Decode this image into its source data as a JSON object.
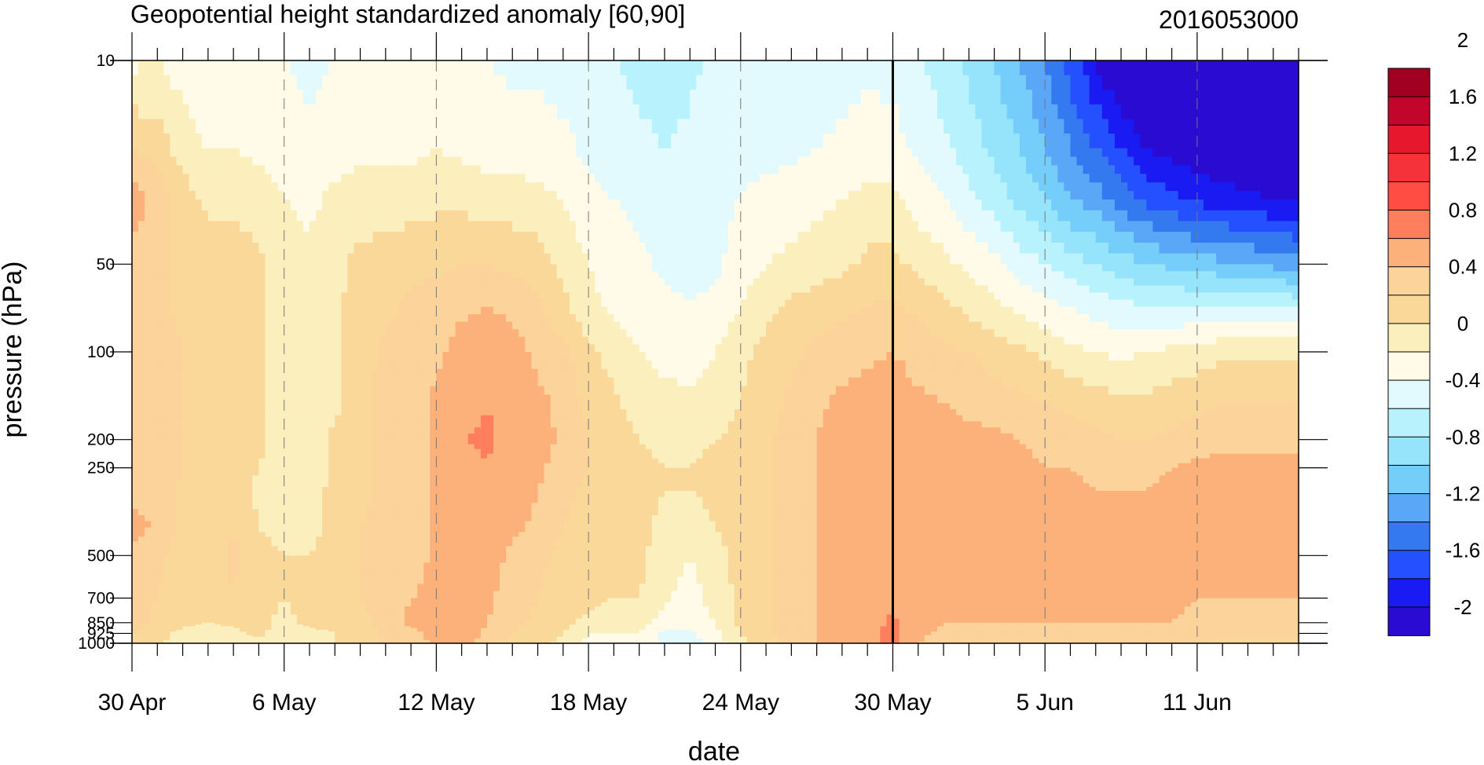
{
  "chart_data": {
    "type": "heatmap",
    "title": "Geopotential height standardized anomaly [60,90]",
    "right_title": "2016053000",
    "xlabel": "date",
    "ylabel": "pressure (hPa)",
    "x_ticks": [
      "30 Apr",
      "6 May",
      "12 May",
      "18 May",
      "24 May",
      "30 May",
      "5 Jun",
      "11 Jun"
    ],
    "x_range": [
      "30 Apr",
      "15 Jun"
    ],
    "y_ticks": [
      10,
      50,
      100,
      200,
      250,
      500,
      700,
      850,
      925,
      1000
    ],
    "y_tick_labels": [
      "10",
      "50",
      "100",
      "200",
      "250",
      "500",
      "700",
      "850",
      "925",
      "1000"
    ],
    "y_scale": "log",
    "y_range": [
      1000,
      10
    ],
    "forecast_start": "30 May",
    "colorbar": {
      "levels": [
        -2.2,
        -2.0,
        -1.8,
        -1.6,
        -1.4,
        -1.2,
        -1.0,
        -0.8,
        -0.6,
        -0.4,
        -0.2,
        0,
        0.2,
        0.4,
        0.6,
        0.8,
        1.0,
        1.2,
        1.4,
        1.6,
        1.8,
        2.0,
        2.2
      ],
      "labels": [
        "2",
        "1.6",
        "1.2",
        "0.8",
        "0.4",
        "0",
        "-0.4",
        "-0.8",
        "-1.2",
        "-1.6",
        "-2"
      ],
      "colors": [
        "#2a0bd1",
        "#1a1af2",
        "#2450ff",
        "#3579f0",
        "#5aa6f7",
        "#75cdfa",
        "#95e4fb",
        "#b8f2fc",
        "#e2fafd",
        "#fffbe8",
        "#fcefbe",
        "#fad89a",
        "#fcd39a",
        "#fcb07a",
        "#ff7e5d",
        "#ff4d44",
        "#f53139",
        "#e6182d",
        "#c2052b",
        "#a10021"
      ]
    },
    "fields": {
      "dates": [
        "30 Apr",
        "1 May",
        "2 May",
        "3 May",
        "4 May",
        "5 May",
        "6 May",
        "7 May",
        "8 May",
        "9 May",
        "10 May",
        "11 May",
        "12 May",
        "13 May",
        "14 May",
        "15 May",
        "16 May",
        "17 May",
        "18 May",
        "19 May",
        "20 May",
        "21 May",
        "22 May",
        "23 May",
        "24 May",
        "25 May",
        "26 May",
        "27 May",
        "28 May",
        "29 May",
        "30 May",
        "31 May",
        "1 Jun",
        "2 Jun",
        "3 Jun",
        "4 Jun",
        "5 Jun",
        "6 Jun",
        "7 Jun",
        "8 Jun",
        "9 Jun",
        "10 Jun",
        "11 Jun",
        "12 Jun",
        "13 Jun",
        "14 Jun",
        "15 Jun"
      ],
      "levels_hpa": [
        10,
        20,
        30,
        50,
        70,
        100,
        150,
        200,
        250,
        300,
        400,
        500,
        700,
        850,
        925,
        1000
      ],
      "values": [
        [
          -0.25,
          0.2,
          0.5,
          0.3,
          0.3,
          0.35,
          0.35,
          0.35,
          0.35,
          0.3,
          0.5,
          0.3,
          0.3,
          0.4,
          0.2,
          0.1
        ],
        [
          -0.2,
          0.1,
          0.35,
          0.25,
          0.25,
          0.3,
          0.35,
          0.4,
          0.4,
          0.35,
          0.35,
          0.25,
          0.2,
          0.1,
          0.05,
          0.05
        ],
        [
          -0.3,
          -0.1,
          0.1,
          0.15,
          0.15,
          0.2,
          0.2,
          0.2,
          0.2,
          0.15,
          0.15,
          0.1,
          0.1,
          0.05,
          -0.05,
          -0.1
        ],
        [
          -0.35,
          -0.2,
          -0.05,
          0.1,
          0.1,
          0.1,
          0.1,
          0.1,
          0.1,
          0.1,
          0.1,
          0.1,
          0.1,
          0,
          -0.15,
          -0.2
        ],
        [
          -0.3,
          -0.2,
          -0.05,
          0.1,
          0.1,
          0.1,
          0.1,
          0.1,
          0.1,
          0.2,
          0.2,
          0.25,
          0.2,
          0.05,
          -0.05,
          -0.1
        ],
        [
          -0.35,
          -0.25,
          -0.1,
          0.05,
          0.05,
          0.05,
          0.05,
          0.05,
          0,
          -0.05,
          0,
          0.05,
          0.05,
          0.05,
          0.05,
          -0.05
        ],
        [
          -0.4,
          -0.3,
          -0.2,
          -0.1,
          -0.1,
          -0.1,
          -0.1,
          -0.1,
          -0.1,
          -0.1,
          -0.05,
          0,
          0,
          -0.05,
          -0.1,
          -0.1
        ],
        [
          -0.45,
          -0.35,
          -0.25,
          -0.15,
          -0.15,
          -0.15,
          -0.15,
          -0.15,
          -0.15,
          -0.15,
          -0.1,
          0,
          0.05,
          0.05,
          -0.05,
          -0.1
        ],
        [
          -0.4,
          -0.3,
          -0.15,
          -0.05,
          -0.05,
          -0.05,
          -0.05,
          0.05,
          0.05,
          0.1,
          0.1,
          0.1,
          0.1,
          0.05,
          0,
          0
        ],
        [
          -0.35,
          -0.25,
          -0.1,
          0.05,
          0.1,
          0.1,
          0.15,
          0.15,
          0.15,
          0.15,
          0.2,
          0.2,
          0.2,
          0.1,
          0.05,
          0.05
        ],
        [
          -0.35,
          -0.25,
          -0.1,
          0.1,
          0.15,
          0.25,
          0.25,
          0.25,
          0.25,
          0.25,
          0.25,
          0.3,
          0.3,
          0.3,
          0.25,
          0.25
        ],
        [
          -0.35,
          -0.25,
          -0.1,
          0.15,
          0.25,
          0.3,
          0.3,
          0.3,
          0.3,
          0.3,
          0.3,
          0.3,
          0.4,
          0.45,
          0.35,
          0.3
        ],
        [
          -0.35,
          -0.2,
          -0.05,
          0.15,
          0.3,
          0.35,
          0.45,
          0.45,
          0.45,
          0.45,
          0.45,
          0.45,
          0.45,
          0.45,
          0.45,
          0.45
        ],
        [
          -0.35,
          -0.25,
          -0.05,
          0.2,
          0.35,
          0.5,
          0.55,
          0.6,
          0.55,
          0.55,
          0.55,
          0.55,
          0.55,
          0.55,
          0.55,
          0.5
        ],
        [
          -0.4,
          -0.3,
          -0.1,
          0.2,
          0.4,
          0.6,
          0.6,
          0.62,
          0.6,
          0.55,
          0.55,
          0.5,
          0.45,
          0.4,
          0.35,
          0.3
        ],
        [
          -0.45,
          -0.3,
          -0.1,
          0.15,
          0.35,
          0.5,
          0.55,
          0.55,
          0.5,
          0.5,
          0.45,
          0.35,
          0.3,
          0.25,
          0.2,
          0.15
        ],
        [
          -0.45,
          -0.3,
          -0.15,
          0.1,
          0.25,
          0.35,
          0.45,
          0.5,
          0.45,
          0.4,
          0.35,
          0.25,
          0.2,
          0.15,
          0.1,
          0.05
        ],
        [
          -0.5,
          -0.35,
          -0.2,
          -0.05,
          0.05,
          0.25,
          0.35,
          0.35,
          0.3,
          0.25,
          0.2,
          0.15,
          0.1,
          0.05,
          0,
          -0.05
        ],
        [
          -0.55,
          -0.45,
          -0.35,
          -0.2,
          -0.15,
          0.05,
          0.15,
          0.2,
          0.2,
          0.15,
          0.1,
          0.1,
          0.05,
          -0.05,
          -0.2,
          -0.25
        ],
        [
          -0.6,
          -0.5,
          -0.4,
          -0.3,
          -0.25,
          -0.1,
          0.05,
          0.1,
          0.1,
          0.1,
          0.1,
          0.05,
          0,
          -0.1,
          -0.2,
          -0.25
        ],
        [
          -0.65,
          -0.55,
          -0.45,
          -0.35,
          -0.3,
          -0.2,
          -0.1,
          0,
          0.05,
          0.05,
          0.05,
          0.05,
          0,
          -0.1,
          -0.2,
          -0.3
        ],
        [
          -0.75,
          -0.6,
          -0.5,
          -0.45,
          -0.35,
          -0.25,
          -0.15,
          -0.05,
          0,
          0,
          -0.05,
          -0.1,
          -0.15,
          -0.3,
          -0.45,
          -0.45
        ],
        [
          -0.65,
          -0.55,
          -0.5,
          -0.45,
          -0.4,
          -0.3,
          -0.15,
          -0.05,
          0,
          0,
          -0.1,
          -0.2,
          -0.3,
          -0.3,
          -0.45,
          -0.5
        ],
        [
          -0.55,
          -0.5,
          -0.45,
          -0.45,
          -0.35,
          -0.2,
          -0.1,
          0,
          0.05,
          0.05,
          0,
          -0.05,
          -0.1,
          -0.2,
          -0.25,
          -0.3
        ],
        [
          -0.5,
          -0.45,
          -0.4,
          -0.3,
          -0.2,
          -0.05,
          0,
          0.05,
          0.1,
          0.1,
          0.05,
          0.05,
          0.05,
          0.05,
          0,
          -0.05
        ],
        [
          -0.55,
          -0.45,
          -0.35,
          -0.2,
          -0.05,
          0.05,
          0.1,
          0.15,
          0.15,
          0.15,
          0.15,
          0.15,
          0.15,
          0.15,
          0.15,
          0.1
        ],
        [
          -0.55,
          -0.45,
          -0.3,
          -0.15,
          0.05,
          0.15,
          0.25,
          0.3,
          0.3,
          0.3,
          0.3,
          0.3,
          0.3,
          0.3,
          0.3,
          0.3
        ],
        [
          -0.5,
          -0.4,
          -0.25,
          -0.1,
          0.1,
          0.25,
          0.35,
          0.4,
          0.4,
          0.4,
          0.4,
          0.4,
          0.4,
          0.4,
          0.4,
          0.4
        ],
        [
          -0.5,
          -0.35,
          -0.2,
          -0.05,
          0.15,
          0.3,
          0.45,
          0.5,
          0.5,
          0.5,
          0.5,
          0.5,
          0.5,
          0.45,
          0.45,
          0.45
        ],
        [
          -0.45,
          -0.3,
          -0.15,
          0.05,
          0.2,
          0.35,
          0.5,
          0.6,
          0.58,
          0.55,
          0.55,
          0.55,
          0.55,
          0.55,
          0.55,
          0.55
        ],
        [
          -0.5,
          -0.3,
          -0.15,
          0.05,
          0.25,
          0.4,
          0.55,
          0.58,
          0.55,
          0.55,
          0.55,
          0.55,
          0.58,
          0.62,
          0.65,
          0.65
        ],
        [
          -0.6,
          -0.45,
          -0.3,
          -0.05,
          0.15,
          0.3,
          0.45,
          0.5,
          0.5,
          0.5,
          0.5,
          0.5,
          0.5,
          0.5,
          0.45,
          0.4
        ],
        [
          -0.7,
          -0.55,
          -0.4,
          -0.15,
          0.05,
          0.25,
          0.4,
          0.5,
          0.5,
          0.5,
          0.5,
          0.45,
          0.45,
          0.4,
          0.35,
          0.3
        ],
        [
          -0.85,
          -0.7,
          -0.55,
          -0.25,
          -0.05,
          0.2,
          0.35,
          0.45,
          0.45,
          0.45,
          0.45,
          0.45,
          0.45,
          0.4,
          0.35,
          0.3
        ],
        [
          -1.0,
          -0.85,
          -0.7,
          -0.35,
          -0.15,
          0.1,
          0.3,
          0.45,
          0.45,
          0.45,
          0.45,
          0.45,
          0.45,
          0.4,
          0.35,
          0.3
        ],
        [
          -1.2,
          -1.0,
          -0.85,
          -0.5,
          -0.25,
          0.05,
          0.25,
          0.4,
          0.45,
          0.45,
          0.45,
          0.45,
          0.45,
          0.4,
          0.35,
          0.3
        ],
        [
          -1.4,
          -1.2,
          -1.0,
          -0.6,
          -0.35,
          -0.05,
          0.2,
          0.35,
          0.4,
          0.45,
          0.45,
          0.45,
          0.45,
          0.4,
          0.35,
          0.25
        ],
        [
          -1.7,
          -1.4,
          -1.2,
          -0.7,
          -0.4,
          -0.15,
          0.15,
          0.3,
          0.4,
          0.45,
          0.45,
          0.45,
          0.45,
          0.4,
          0.3,
          0.2
        ],
        [
          -2.0,
          -1.6,
          -1.3,
          -0.8,
          -0.5,
          -0.2,
          0.1,
          0.25,
          0.35,
          0.4,
          0.45,
          0.45,
          0.45,
          0.4,
          0.3,
          0.2
        ],
        [
          -2.3,
          -1.8,
          -1.5,
          -0.9,
          -0.55,
          -0.25,
          0.05,
          0.2,
          0.35,
          0.4,
          0.4,
          0.45,
          0.45,
          0.4,
          0.3,
          0.2
        ],
        [
          -2.4,
          -2.0,
          -1.65,
          -1.0,
          -0.6,
          -0.2,
          0.05,
          0.2,
          0.35,
          0.4,
          0.45,
          0.45,
          0.45,
          0.4,
          0.3,
          0.2
        ],
        [
          -2.4,
          -2.1,
          -1.75,
          -1.05,
          -0.6,
          -0.15,
          0.1,
          0.25,
          0.4,
          0.45,
          0.45,
          0.45,
          0.45,
          0.4,
          0.3,
          0.2
        ],
        [
          -2.4,
          -2.15,
          -1.85,
          -1.1,
          -0.6,
          -0.1,
          0.15,
          0.3,
          0.45,
          0.45,
          0.45,
          0.45,
          0.4,
          0.35,
          0.3,
          0.2
        ],
        [
          -2.4,
          -2.2,
          -1.9,
          -1.15,
          -0.6,
          -0.05,
          0.2,
          0.35,
          0.45,
          0.45,
          0.45,
          0.45,
          0.4,
          0.35,
          0.25,
          0.15
        ],
        [
          -2.4,
          -2.25,
          -1.95,
          -1.2,
          -0.6,
          -0.05,
          0.2,
          0.35,
          0.45,
          0.45,
          0.45,
          0.45,
          0.4,
          0.35,
          0.25,
          0.15
        ],
        [
          -2.4,
          -2.25,
          -2.0,
          -1.25,
          -0.6,
          -0.05,
          0.2,
          0.35,
          0.45,
          0.45,
          0.45,
          0.45,
          0.4,
          0.35,
          0.25,
          0.15
        ],
        [
          -2.4,
          -2.3,
          -2.05,
          -1.3,
          -0.65,
          -0.05,
          0.2,
          0.35,
          0.45,
          0.45,
          0.45,
          0.45,
          0.4,
          0.35,
          0.25,
          0.15
        ]
      ]
    }
  }
}
